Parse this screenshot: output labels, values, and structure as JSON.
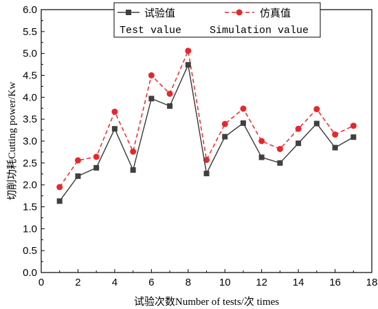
{
  "chart_data": {
    "type": "line",
    "xlabel": "试验次数Number of tests/次 times",
    "ylabel": "切削功耗Cutting power/Kw",
    "xlim": [
      0,
      18
    ],
    "ylim": [
      0.0,
      6.0
    ],
    "x_ticks": [
      "0",
      "2",
      "4",
      "6",
      "8",
      "10",
      "12",
      "14",
      "16",
      "18"
    ],
    "y_ticks": [
      "0.0",
      "0.5",
      "1.0",
      "1.5",
      "2.0",
      "2.5",
      "3.0",
      "3.5",
      "4.0",
      "4.5",
      "5.0",
      "5.5",
      "6.0"
    ],
    "grid": false,
    "legend_position": "top-right",
    "x": [
      1,
      2,
      3,
      4,
      5,
      6,
      7,
      8,
      9,
      10,
      11,
      12,
      13,
      14,
      15,
      16,
      17
    ],
    "series": [
      {
        "name_cn": "试验值",
        "name_en": "Test value",
        "color": "#404040",
        "marker": "square",
        "line_style": "solid",
        "values": [
          1.63,
          2.2,
          2.39,
          3.28,
          2.34,
          3.97,
          3.8,
          4.74,
          2.26,
          3.1,
          3.41,
          2.63,
          2.5,
          2.95,
          3.4,
          2.85,
          3.09
        ]
      },
      {
        "name_cn": "仿真值",
        "name_en": "Simulation value",
        "color": "#e8272c",
        "marker": "circle",
        "line_style": "dashed",
        "values": [
          1.95,
          2.56,
          2.64,
          3.67,
          2.76,
          4.5,
          4.08,
          5.06,
          2.57,
          3.39,
          3.74,
          3.0,
          2.82,
          3.28,
          3.73,
          3.15,
          3.35
        ]
      }
    ]
  }
}
